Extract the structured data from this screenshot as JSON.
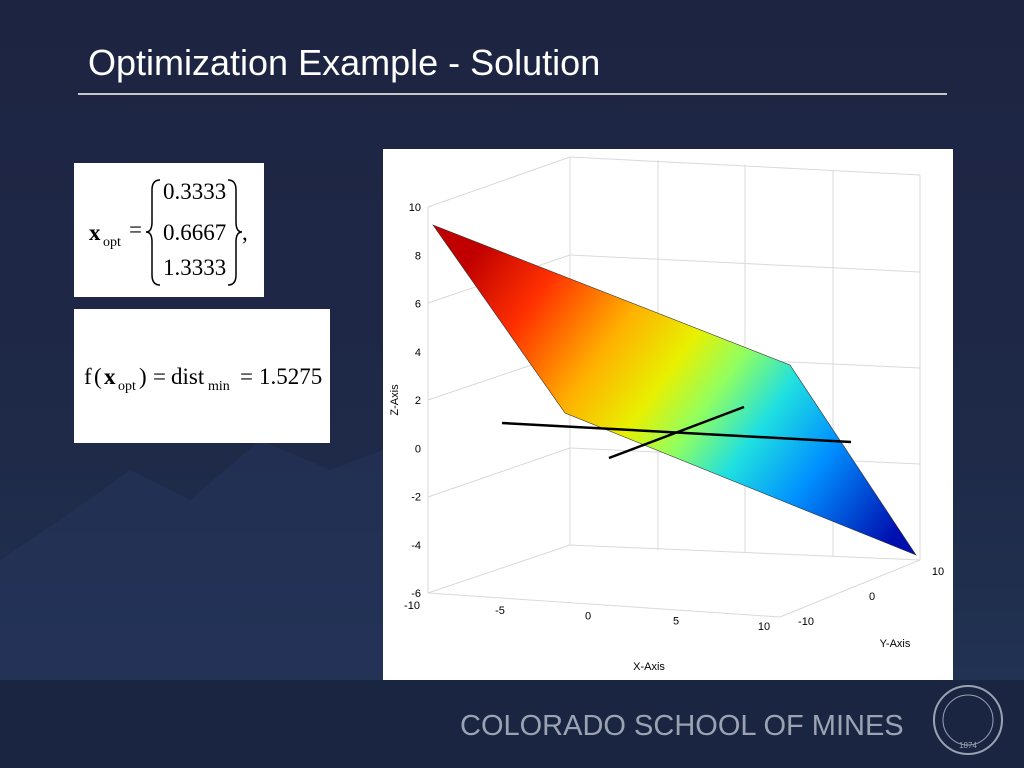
{
  "header": {
    "title": "Optimization Example - Solution"
  },
  "equation_1": {
    "symbol": "x",
    "subscript": "opt",
    "equals": "=",
    "vector": [
      0.3333,
      0.6667,
      1.3333
    ],
    "trailing": ","
  },
  "equation_2": {
    "function": "f",
    "open": "(",
    "symbol": "x",
    "subscript": "opt",
    "close": ")",
    "equals": "=",
    "name": "dist",
    "name_subscript": "min",
    "value": 1.5275
  },
  "plot": {
    "x_label": "X-Axis",
    "y_label": "Y-Axis",
    "z_label": "Z-Axis",
    "x_ticks": [
      -10,
      -5,
      0,
      5,
      10
    ],
    "y_ticks": [
      -10,
      0,
      10
    ],
    "z_ticks": [
      -6,
      -4,
      -2,
      0,
      2,
      4,
      6,
      8,
      10
    ]
  },
  "footer": {
    "institution": "COLORADO SCHOOL OF MINES",
    "logo_year": 1874
  }
}
